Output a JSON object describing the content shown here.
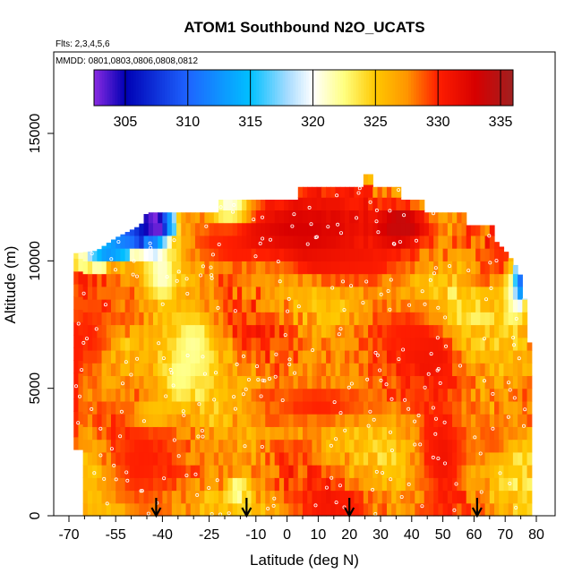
{
  "chart_data": {
    "type": "heatmap",
    "title": "ATOM1 Southbound N2O_UCATS",
    "flights_note": "Flts: 2,3,4,5,6",
    "dates_note": "MMDD: 0801,0803,0806,0808,0812",
    "xlabel": "Latitude (deg N)",
    "ylabel": "Altitude (m)",
    "xlim": [
      -70,
      80
    ],
    "ylim": [
      0,
      17000
    ],
    "x_ticks": [
      -70,
      -55,
      -40,
      -25,
      -10,
      0,
      10,
      20,
      30,
      40,
      50,
      60,
      70,
      80
    ],
    "x_tick_labels": [
      "-70",
      "-55",
      "-40",
      "-25",
      "-10",
      "0",
      "10",
      "20",
      "30",
      "40",
      "50",
      "60",
      "70",
      "80"
    ],
    "x_minor_ticks": [
      -65,
      -60,
      -50,
      -45,
      -35,
      -30,
      -20,
      -15,
      -5,
      5,
      15,
      25,
      35,
      45,
      55,
      65,
      75
    ],
    "y_ticks": [
      0,
      5000,
      10000,
      15000
    ],
    "y_tick_labels": [
      "0",
      "5000",
      "10000",
      "15000"
    ],
    "colorbar": {
      "range": [
        302.5,
        336
      ],
      "ticks": [
        305,
        310,
        315,
        320,
        325,
        330,
        335
      ],
      "tick_labels": [
        "305",
        "310",
        "315",
        "320",
        "325",
        "330",
        "335"
      ],
      "stops": [
        {
          "v": 302.5,
          "c": "#8a2be2"
        },
        {
          "v": 305,
          "c": "#0000b4"
        },
        {
          "v": 310,
          "c": "#1e64ff"
        },
        {
          "v": 315,
          "c": "#00c0ff"
        },
        {
          "v": 318,
          "c": "#a8dcff"
        },
        {
          "v": 320,
          "c": "#ffffff"
        },
        {
          "v": 322.5,
          "c": "#ffff80"
        },
        {
          "v": 325,
          "c": "#ffc800"
        },
        {
          "v": 327.5,
          "c": "#ff9600"
        },
        {
          "v": 330,
          "c": "#ff1e00"
        },
        {
          "v": 333,
          "c": "#d70000"
        },
        {
          "v": 336,
          "c": "#a02020"
        }
      ]
    },
    "profile_arrows_latitude": [
      -42,
      -13,
      20,
      61
    ],
    "envelope": [
      {
        "lat": -68,
        "bottom": 200,
        "top": 10300
      },
      {
        "lat": -61,
        "bottom": 0,
        "top": 10400
      },
      {
        "lat": -55,
        "bottom": 0,
        "top": 10900
      },
      {
        "lat": -47,
        "bottom": 0,
        "top": 11400
      },
      {
        "lat": -45,
        "bottom": 0,
        "top": 11900
      },
      {
        "lat": -20,
        "bottom": 0,
        "top": 11900
      },
      {
        "lat": -22,
        "bottom": 0,
        "top": 12400
      },
      {
        "lat": 3,
        "bottom": 0,
        "top": 12400
      },
      {
        "lat": 3,
        "bottom": 0,
        "top": 12900
      },
      {
        "lat": 24,
        "bottom": 0,
        "top": 12900
      },
      {
        "lat": 24,
        "bottom": 0,
        "top": 13400
      },
      {
        "lat": 27,
        "bottom": 0,
        "top": 13400
      },
      {
        "lat": 27,
        "bottom": 0,
        "top": 12900
      },
      {
        "lat": 37,
        "bottom": 0,
        "top": 12900
      },
      {
        "lat": 37,
        "bottom": 0,
        "top": 12400
      },
      {
        "lat": 44,
        "bottom": 0,
        "top": 12400
      },
      {
        "lat": 44,
        "bottom": 0,
        "top": 11900
      },
      {
        "lat": 57,
        "bottom": 0,
        "top": 11900
      },
      {
        "lat": 57,
        "bottom": 0,
        "top": 11400
      },
      {
        "lat": 66,
        "bottom": 0,
        "top": 11400
      },
      {
        "lat": 66,
        "bottom": 0,
        "top": 10900
      },
      {
        "lat": 70,
        "bottom": 0,
        "top": 10400
      },
      {
        "lat": 73,
        "bottom": 0,
        "top": 9900
      },
      {
        "lat": 75,
        "bottom": 0,
        "top": 9400
      },
      {
        "lat": 77,
        "bottom": 0,
        "top": 8000
      },
      {
        "lat": 78,
        "bottom": 0,
        "top": 6400
      },
      {
        "lat": 78,
        "bottom": 0,
        "top": 5000
      },
      {
        "lat": 77,
        "bottom": 0,
        "top": 0
      }
    ],
    "features": [
      {
        "lat": 4,
        "alt": 11300,
        "dlat": 24,
        "dalt": 1400,
        "v": 333
      },
      {
        "lat": 37,
        "alt": 11400,
        "dlat": 8,
        "dalt": 900,
        "v": 334
      },
      {
        "lat": -43,
        "alt": 11400,
        "dlat": 5,
        "dalt": 900,
        "v": 306
      },
      {
        "lat": -50,
        "alt": 11300,
        "dlat": 7,
        "dalt": 900,
        "v": 316
      },
      {
        "lat": -18,
        "alt": 12000,
        "dlat": 6,
        "dalt": 500,
        "v": 316
      },
      {
        "lat": -58,
        "alt": 10400,
        "dlat": 6,
        "dalt": 500,
        "v": 319
      },
      {
        "lat": 75,
        "alt": 9400,
        "dlat": 2,
        "dalt": 1000,
        "v": 307
      },
      {
        "lat": -40,
        "alt": 9400,
        "dlat": 5,
        "dalt": 1000,
        "v": 321
      },
      {
        "lat": -30,
        "alt": 6700,
        "dlat": 7,
        "dalt": 1500,
        "v": 322
      },
      {
        "lat": -35,
        "alt": 5200,
        "dlat": 4,
        "dalt": 700,
        "v": 322
      },
      {
        "lat": -43,
        "alt": 4000,
        "dlat": 6,
        "dalt": 500,
        "v": 323
      },
      {
        "lat": -16,
        "alt": 1000,
        "dlat": 3,
        "dalt": 400,
        "v": 320
      },
      {
        "lat": -47,
        "alt": 2000,
        "dlat": 12,
        "dalt": 2500,
        "v": 330
      },
      {
        "lat": 11,
        "alt": 4400,
        "dlat": 25,
        "dalt": 1000,
        "v": 330
      },
      {
        "lat": 50,
        "alt": 2400,
        "dlat": 8,
        "dalt": 2200,
        "v": 331
      },
      {
        "lat": 47,
        "alt": 6200,
        "dlat": 8,
        "dalt": 900,
        "v": 331
      },
      {
        "lat": 38,
        "alt": 7300,
        "dlat": 12,
        "dalt": 1000,
        "v": 330
      },
      {
        "lat": -63,
        "alt": 7000,
        "dlat": 5,
        "dalt": 1800,
        "v": 330
      },
      {
        "lat": 20,
        "alt": 9800,
        "dlat": 20,
        "dalt": 800,
        "v": 330
      },
      {
        "lat": -20,
        "alt": 10700,
        "dlat": 10,
        "dalt": 900,
        "v": 329
      },
      {
        "lat": 66,
        "alt": 3000,
        "dlat": 6,
        "dalt": 900,
        "v": 329
      },
      {
        "lat": -68,
        "alt": 5000,
        "dlat": 2,
        "dalt": 3500,
        "v": 330
      },
      {
        "lat": 14,
        "alt": 500,
        "dlat": 10,
        "dalt": 700,
        "v": 331
      },
      {
        "lat": 72,
        "alt": 8600,
        "dlat": 3,
        "dalt": 1300,
        "v": 322
      }
    ],
    "grid": false
  }
}
